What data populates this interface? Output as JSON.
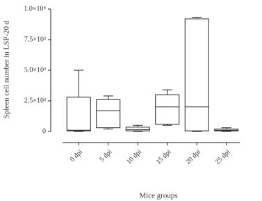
{
  "chart_data": {
    "type": "box",
    "y_label": "Spleen cell number in LSP-20 d",
    "x_label": "Mice groups",
    "categories": [
      "0 dpi",
      "5 dpi",
      "10 dpi",
      "15 dpi",
      "20 dpi",
      "25 dpi"
    ],
    "min": [
      0,
      200,
      0,
      500,
      0,
      0
    ],
    "q1": [
      50,
      300,
      50,
      600,
      50,
      50
    ],
    "median": [
      100,
      1700,
      150,
      2000,
      2000,
      100
    ],
    "q3": [
      2800,
      2600,
      350,
      3000,
      9200,
      200
    ],
    "max": [
      5000,
      2900,
      500,
      3400,
      9300,
      300
    ],
    "color": "#222222",
    "ylim": [
      0,
      10000
    ],
    "yticks": [
      0,
      {
        "value": 2500,
        "label": "2.5×10³"
      },
      {
        "value": 5000,
        "label": "5.0×10³"
      },
      {
        "value": 7500,
        "label": "7.5×10³"
      },
      {
        "value": 10000,
        "label": "1.0×10⁴"
      }
    ],
    "grid": false
  }
}
